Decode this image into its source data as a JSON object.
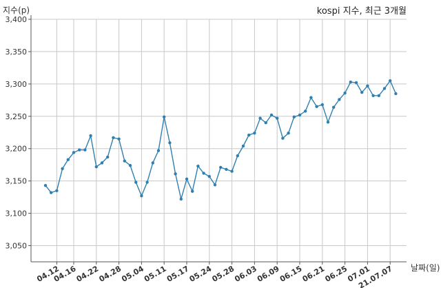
{
  "chart_data": {
    "type": "line",
    "title": "kospi 지수, 최근 3개월",
    "ylabel": "지수(p)",
    "xlabel": "날짜(일)",
    "ylim": [
      3025,
      3400
    ],
    "y_ticks": [
      3050,
      3100,
      3150,
      3200,
      3250,
      3300,
      3350,
      3400
    ],
    "y_tick_labels": [
      "3,050",
      "3,100",
      "3,150",
      "3,200",
      "3,250",
      "3,300",
      "3,350",
      "3,400"
    ],
    "x_tick_labels": [
      "04.12",
      "04.16",
      "04.22",
      "04.28",
      "05.04",
      "05.11",
      "05.17",
      "05.24",
      "05.28",
      "06.03",
      "06.09",
      "06.15",
      "06.21",
      "06.25",
      "07.01",
      "21.07.07"
    ],
    "x_tick_index": [
      2,
      5,
      9,
      13,
      17,
      21,
      25,
      29,
      33,
      37,
      41,
      45,
      49,
      53,
      57,
      61
    ],
    "grid": true,
    "line_color": "#2f7fb0",
    "series": [
      {
        "values": [
          3143,
          3132,
          3135,
          3169,
          3183,
          3194,
          3198,
          3198,
          3220,
          3172,
          3178,
          3187,
          3217,
          3215,
          3181,
          3174,
          3148,
          3127,
          3148,
          3178,
          3197,
          3249,
          3209,
          3161,
          3122,
          3153,
          3134,
          3173,
          3162,
          3157,
          3144,
          3171,
          3168,
          3165,
          3189,
          3204,
          3221,
          3224,
          3247,
          3240,
          3252,
          3247,
          3216,
          3224,
          3249,
          3252,
          3258,
          3279,
          3265,
          3268,
          3241,
          3264,
          3276,
          3286,
          3303,
          3302,
          3287,
          3297,
          3282,
          3282,
          3293,
          3305,
          3285
        ]
      }
    ]
  }
}
